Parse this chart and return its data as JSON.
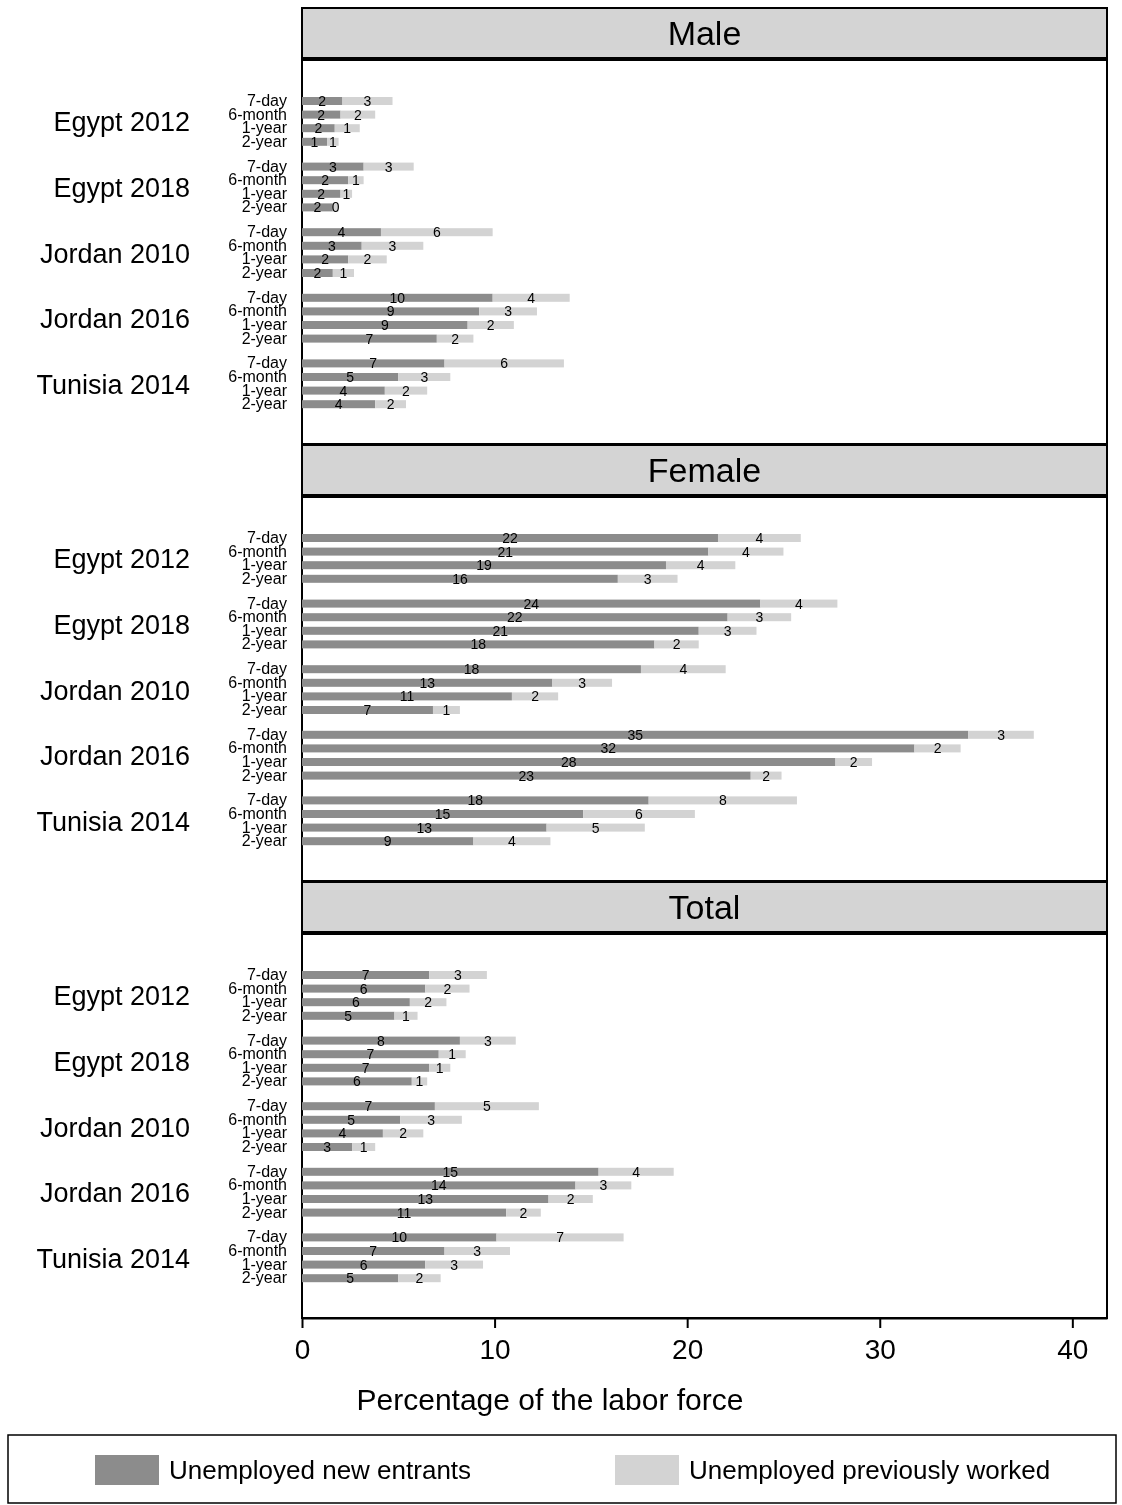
{
  "chart_data": [
    {
      "type": "bar",
      "orientation": "horizontal",
      "stacked": true,
      "title": "Male",
      "tick_labels": "y",
      "xlim": [
        0,
        41.8
      ],
      "categories": [
        "7-day",
        "6-month",
        "1-year",
        "2-year",
        "7-day",
        "6-month",
        "1-year",
        "2-year",
        "7-day",
        "6-month",
        "1-year",
        "2-year",
        "7-day",
        "6-month",
        "1-year",
        "2-year",
        "7-day",
        "6-month",
        "1-year",
        "2-year"
      ],
      "annotations": [
        "Egypt 2012",
        "Egypt 2018",
        "Jordan 2010",
        "Jordan 2016",
        "Tunisia 2014"
      ],
      "series": [
        {
          "color": "#8c8c8c",
          "values": [
            2.1,
            2.0,
            1.7,
            1.3,
            3.2,
            2.4,
            2.0,
            1.6,
            4.1,
            3.1,
            2.4,
            1.6,
            9.9,
            9.2,
            8.6,
            7.0,
            7.4,
            5.0,
            4.3,
            3.8
          ],
          "value_labels": [
            "2",
            "2",
            "2",
            "1",
            "3",
            "2",
            "2",
            "2",
            "4",
            "3",
            "2",
            "2",
            "10",
            "9",
            "9",
            "7",
            "7",
            "5",
            "4",
            "4"
          ]
        },
        {
          "color": "#d3d3d3",
          "values": [
            2.6,
            1.8,
            1.3,
            0.6,
            2.6,
            0.8,
            0.6,
            0.3,
            5.8,
            3.2,
            2.0,
            1.1,
            4.0,
            3.0,
            2.4,
            1.9,
            6.2,
            2.7,
            2.2,
            1.6
          ],
          "value_labels": [
            "3",
            "2",
            "1",
            "1",
            "3",
            "1",
            "1",
            "0",
            "6",
            "3",
            "2",
            "1",
            "4",
            "3",
            "2",
            "2",
            "6",
            "3",
            "2",
            "2"
          ]
        }
      ]
    },
    {
      "type": "bar",
      "orientation": "horizontal",
      "stacked": true,
      "title": "Female",
      "tick_labels": "y",
      "xlim": [
        0,
        41.8
      ],
      "categories": [
        "7-day",
        "6-month",
        "1-year",
        "2-year",
        "7-day",
        "6-month",
        "1-year",
        "2-year",
        "7-day",
        "6-month",
        "1-year",
        "2-year",
        "7-day",
        "6-month",
        "1-year",
        "2-year",
        "7-day",
        "6-month",
        "1-year",
        "2-year"
      ],
      "annotations": [
        "Egypt 2012",
        "Egypt 2018",
        "Jordan 2010",
        "Jordan 2016",
        "Tunisia 2014"
      ],
      "series": [
        {
          "color": "#8c8c8c",
          "values": [
            21.6,
            21.1,
            18.9,
            16.4,
            23.8,
            22.1,
            20.6,
            18.3,
            17.6,
            13.0,
            10.9,
            6.8,
            34.6,
            31.8,
            27.7,
            23.3,
            18.0,
            14.6,
            12.7,
            8.9
          ],
          "value_labels": [
            "22",
            "21",
            "19",
            "16",
            "24",
            "22",
            "21",
            "18",
            "18",
            "13",
            "11",
            "7",
            "35",
            "32",
            "28",
            "23",
            "18",
            "15",
            "13",
            "9"
          ]
        },
        {
          "color": "#d3d3d3",
          "values": [
            4.3,
            3.9,
            3.6,
            3.1,
            4.0,
            3.3,
            3.0,
            2.3,
            4.4,
            3.1,
            2.4,
            1.4,
            3.4,
            2.4,
            1.9,
            1.6,
            7.7,
            5.8,
            5.1,
            4.0
          ],
          "value_labels": [
            "4",
            "4",
            "4",
            "3",
            "4",
            "3",
            "3",
            "2",
            "4",
            "3",
            "2",
            "1",
            "3",
            "2",
            "2",
            "2",
            "8",
            "6",
            "5",
            "4"
          ]
        }
      ]
    },
    {
      "type": "bar",
      "orientation": "horizontal",
      "stacked": true,
      "title": "Total",
      "xlabel": "Percentage of the labor force",
      "legend": "bottom",
      "xlim": [
        0,
        41.8
      ],
      "xticks": [
        0,
        10,
        20,
        30,
        40
      ],
      "categories": [
        "7-day",
        "6-month",
        "1-year",
        "2-year",
        "7-day",
        "6-month",
        "1-year",
        "2-year",
        "7-day",
        "6-month",
        "1-year",
        "2-year",
        "7-day",
        "6-month",
        "1-year",
        "2-year",
        "7-day",
        "6-month",
        "1-year",
        "2-year"
      ],
      "annotations": [
        "Egypt 2012",
        "Egypt 2018",
        "Jordan 2010",
        "Jordan 2016",
        "Tunisia 2014"
      ],
      "series": [
        {
          "name": "Unemployed new entrants",
          "color": "#8c8c8c",
          "values": [
            6.6,
            6.4,
            5.6,
            4.8,
            8.2,
            7.1,
            6.6,
            5.7,
            6.9,
            5.1,
            4.2,
            2.6,
            15.4,
            14.2,
            12.8,
            10.6,
            10.1,
            7.4,
            6.4,
            5.0
          ],
          "value_labels": [
            "7",
            "6",
            "6",
            "5",
            "8",
            "7",
            "7",
            "6",
            "7",
            "5",
            "4",
            "3",
            "15",
            "14",
            "13",
            "11",
            "10",
            "7",
            "6",
            "5"
          ]
        },
        {
          "name": "Unemployed previously worked",
          "color": "#d3d3d3",
          "values": [
            3.0,
            2.3,
            1.9,
            1.2,
            2.9,
            1.4,
            1.1,
            0.8,
            5.4,
            3.2,
            2.1,
            1.2,
            3.9,
            2.9,
            2.3,
            1.8,
            6.6,
            3.4,
            3.0,
            2.2
          ],
          "value_labels": [
            "3",
            "2",
            "2",
            "1",
            "3",
            "1",
            "1",
            "1",
            "5",
            "3",
            "2",
            "1",
            "4",
            "3",
            "2",
            "2",
            "7",
            "3",
            "3",
            "2"
          ]
        }
      ]
    }
  ]
}
